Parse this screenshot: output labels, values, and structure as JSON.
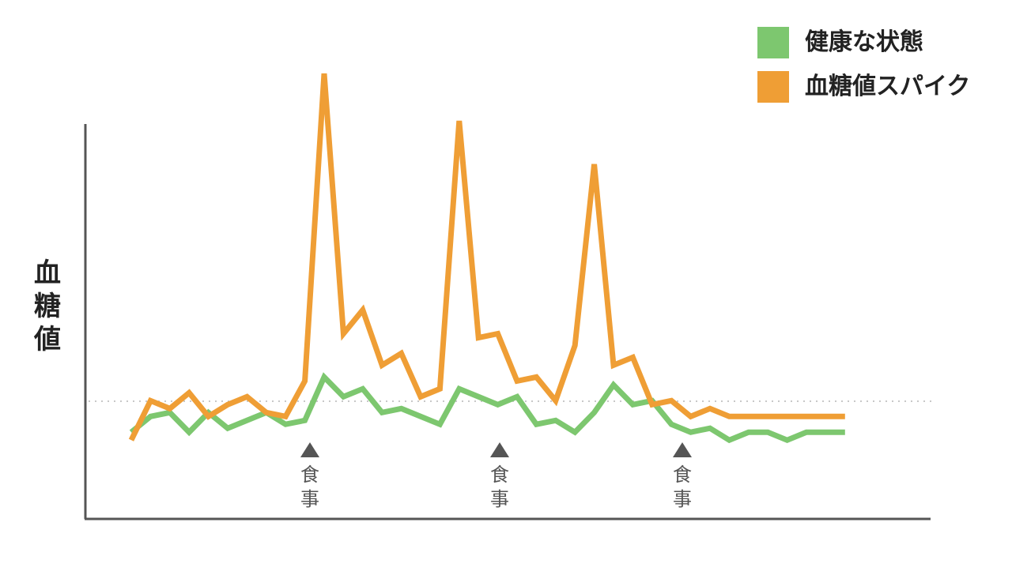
{
  "legend": {
    "healthy": "健康な状態",
    "spike": "血糖値スパイク"
  },
  "chart_data": {
    "type": "line",
    "title": "",
    "xlabel": "",
    "ylabel": "血糖値",
    "ylim": [
      0,
      100
    ],
    "grid": false,
    "legend_position": "top-right",
    "baseline": 29.5,
    "series": [
      {
        "name": "健康な状態",
        "color": "#7dc76f",
        "x": [
          0,
          1,
          2,
          3,
          4,
          5,
          6,
          7,
          8,
          9,
          10,
          11,
          12,
          13,
          14,
          15,
          16,
          17,
          18,
          19,
          20,
          21,
          22,
          23,
          24,
          25,
          26,
          27,
          28,
          29,
          30,
          31,
          32,
          33,
          34,
          35,
          36,
          37
        ],
        "values": [
          22,
          26,
          27,
          22,
          27,
          23,
          25,
          27,
          24,
          25,
          36,
          31,
          33,
          27,
          28,
          26,
          24,
          33,
          31,
          29,
          31,
          24,
          25,
          22,
          27,
          34,
          29,
          30,
          24,
          22,
          23,
          20,
          22,
          22,
          20,
          22,
          22,
          22
        ]
      },
      {
        "name": "血糖値スパイク",
        "color": "#ef9e35",
        "x": [
          0,
          1,
          2,
          3,
          4,
          5,
          6,
          7,
          8,
          9,
          10,
          11,
          12,
          13,
          14,
          15,
          16,
          17,
          18,
          19,
          20,
          21,
          22,
          23,
          24,
          25,
          26,
          27,
          28,
          29,
          30,
          31,
          32,
          33,
          34,
          35,
          36,
          37
        ],
        "values": [
          20,
          30,
          28,
          32,
          26,
          29,
          31,
          27,
          26,
          35,
          113,
          47,
          53,
          39,
          42,
          31,
          33,
          101,
          46,
          47,
          35,
          36,
          30,
          44,
          90,
          39,
          41,
          29,
          30,
          26,
          28,
          26,
          26,
          26,
          26,
          26,
          26,
          26
        ]
      }
    ],
    "annotations": [
      {
        "label": "食事",
        "marker": "▲"
      },
      {
        "label": "食事",
        "marker": "▲"
      },
      {
        "label": "食事",
        "marker": "▲"
      }
    ]
  }
}
